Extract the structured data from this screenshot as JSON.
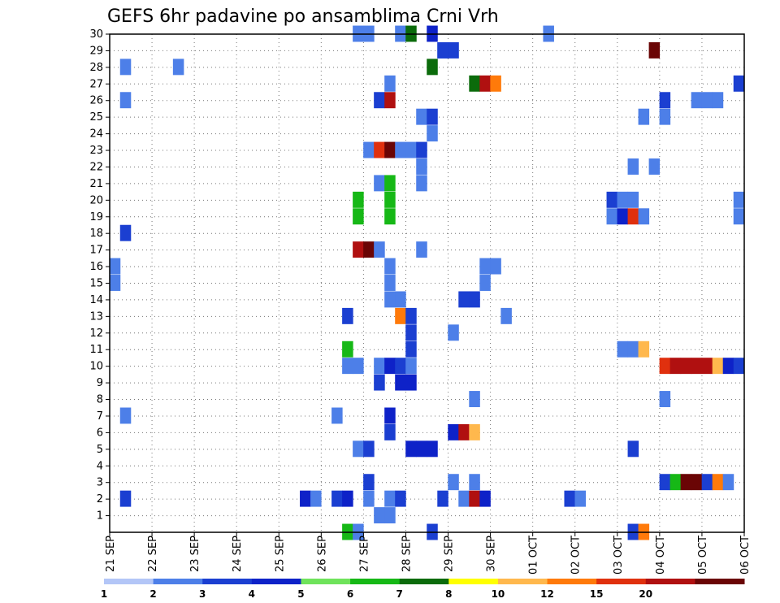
{
  "chart_data": {
    "type": "heatmap",
    "title": "GEFS 6hr padavine po ansamblima Crni Vrh",
    "xlabel": "",
    "ylabel": "",
    "x_ticks": [
      "21 SEP",
      "22 SEP",
      "23 SEP",
      "24 SEP",
      "25 SEP",
      "26 SEP",
      "27 SEP",
      "28 SEP",
      "29 SEP",
      "30 SEP",
      "01 OCT",
      "02 OCT",
      "03 OCT",
      "04 OCT",
      "05 OCT",
      "06 OCT"
    ],
    "x_range": [
      0,
      15
    ],
    "y_ticks": [
      1,
      2,
      3,
      4,
      5,
      6,
      7,
      8,
      9,
      10,
      11,
      12,
      13,
      14,
      15,
      16,
      17,
      18,
      19,
      20,
      21,
      22,
      23,
      24,
      25,
      26,
      27,
      28,
      29,
      30
    ],
    "y_range": [
      0,
      30
    ],
    "grid": true,
    "legend": {
      "placement": "bottom",
      "labels": [
        "1",
        "2",
        "3",
        "4",
        "5",
        "6",
        "7",
        "8",
        "10",
        "12",
        "15",
        "20"
      ],
      "colors": [
        "#b3c6f7",
        "#4d7fe8",
        "#1b3fd1",
        "#0e22c8",
        "#6fe35b",
        "#16b816",
        "#0b6b0b",
        "#ffff00",
        "#ffb84d",
        "#ff7a0a",
        "#e0300e",
        "#b01010",
        "#6a0505"
      ]
    },
    "cells": [
      [
        5.75,
        30,
        1
      ],
      [
        6.0,
        30,
        1
      ],
      [
        6.75,
        30,
        1
      ],
      [
        7.0,
        30,
        6
      ],
      [
        7.5,
        30,
        3
      ],
      [
        10.25,
        30,
        1
      ],
      [
        7.75,
        29,
        1
      ],
      [
        8.0,
        29,
        2
      ],
      [
        7.75,
        29,
        2
      ],
      [
        12.75,
        29,
        13
      ],
      [
        0.25,
        28,
        1
      ],
      [
        1.5,
        28,
        1
      ],
      [
        7.5,
        28,
        6
      ],
      [
        6.5,
        27,
        1
      ],
      [
        8.5,
        27,
        6
      ],
      [
        8.75,
        27,
        11
      ],
      [
        9.0,
        27,
        9
      ],
      [
        14.75,
        27,
        2
      ],
      [
        0.25,
        26,
        1
      ],
      [
        6.25,
        26,
        2
      ],
      [
        6.5,
        26,
        11
      ],
      [
        13.0,
        26,
        2
      ],
      [
        13.75,
        26,
        1
      ],
      [
        14.0,
        26,
        1
      ],
      [
        14.25,
        26,
        1
      ],
      [
        7.25,
        25,
        1
      ],
      [
        7.5,
        25,
        2
      ],
      [
        12.5,
        25,
        1
      ],
      [
        13.0,
        25,
        1
      ],
      [
        7.5,
        24,
        1
      ],
      [
        6.0,
        23,
        1
      ],
      [
        6.25,
        23,
        10
      ],
      [
        6.5,
        23,
        13
      ],
      [
        6.75,
        23,
        1
      ],
      [
        7.0,
        23,
        1
      ],
      [
        7.25,
        23,
        2
      ],
      [
        12.25,
        22,
        1
      ],
      [
        12.75,
        22,
        1
      ],
      [
        7.25,
        22,
        1
      ],
      [
        6.25,
        21,
        1
      ],
      [
        6.5,
        21,
        5
      ],
      [
        7.25,
        21,
        1
      ],
      [
        5.75,
        20,
        5
      ],
      [
        6.5,
        20,
        5
      ],
      [
        11.75,
        20,
        2
      ],
      [
        12.0,
        20,
        1
      ],
      [
        12.25,
        20,
        1
      ],
      [
        14.75,
        20,
        1
      ],
      [
        5.75,
        19,
        5
      ],
      [
        6.5,
        19,
        5
      ],
      [
        11.75,
        19,
        1
      ],
      [
        12.0,
        19,
        3
      ],
      [
        12.25,
        19,
        10
      ],
      [
        12.5,
        19,
        1
      ],
      [
        14.75,
        19,
        1
      ],
      [
        0.25,
        18,
        2
      ],
      [
        5.75,
        17,
        11
      ],
      [
        6.0,
        17,
        13
      ],
      [
        6.25,
        17,
        1
      ],
      [
        7.25,
        17,
        1
      ],
      [
        0.0,
        16,
        1
      ],
      [
        6.5,
        16,
        1
      ],
      [
        8.75,
        16,
        1
      ],
      [
        9.0,
        16,
        1
      ],
      [
        0.0,
        15,
        1
      ],
      [
        6.5,
        15,
        1
      ],
      [
        8.75,
        15,
        1
      ],
      [
        6.5,
        14,
        1
      ],
      [
        6.75,
        14,
        1
      ],
      [
        8.25,
        14,
        2
      ],
      [
        8.5,
        14,
        2
      ],
      [
        5.5,
        13,
        2
      ],
      [
        6.75,
        13,
        9
      ],
      [
        7.0,
        13,
        2
      ],
      [
        9.25,
        13,
        1
      ],
      [
        7.0,
        12,
        2
      ],
      [
        8.0,
        12,
        1
      ],
      [
        5.5,
        11,
        5
      ],
      [
        7.0,
        11,
        2
      ],
      [
        12.0,
        11,
        1
      ],
      [
        12.25,
        11,
        1
      ],
      [
        12.5,
        11,
        8
      ],
      [
        5.5,
        10,
        1
      ],
      [
        5.75,
        10,
        1
      ],
      [
        6.25,
        10,
        1
      ],
      [
        6.5,
        10,
        3
      ],
      [
        6.75,
        10,
        2
      ],
      [
        7.0,
        10,
        1
      ],
      [
        13.0,
        10,
        10
      ],
      [
        13.25,
        10,
        11
      ],
      [
        13.5,
        10,
        11
      ],
      [
        13.75,
        10,
        11
      ],
      [
        14.0,
        10,
        11
      ],
      [
        14.25,
        10,
        8
      ],
      [
        14.5,
        10,
        3
      ],
      [
        14.75,
        10,
        2
      ],
      [
        6.25,
        9,
        2
      ],
      [
        6.75,
        9,
        3
      ],
      [
        7.0,
        9,
        3
      ],
      [
        8.5,
        8,
        1
      ],
      [
        13.0,
        8,
        1
      ],
      [
        0.25,
        7,
        1
      ],
      [
        5.25,
        7,
        1
      ],
      [
        6.5,
        7,
        3
      ],
      [
        6.5,
        6,
        2
      ],
      [
        8.0,
        6,
        3
      ],
      [
        8.25,
        6,
        11
      ],
      [
        8.5,
        6,
        8
      ],
      [
        5.75,
        5,
        1
      ],
      [
        6.0,
        5,
        2
      ],
      [
        7.0,
        5,
        3
      ],
      [
        7.25,
        5,
        3
      ],
      [
        7.5,
        5,
        3
      ],
      [
        12.25,
        5,
        2
      ],
      [
        6.0,
        3,
        2
      ],
      [
        8.0,
        3,
        1
      ],
      [
        8.5,
        3,
        1
      ],
      [
        13.0,
        3,
        2
      ],
      [
        13.25,
        3,
        5
      ],
      [
        13.5,
        3,
        13
      ],
      [
        13.75,
        3,
        13
      ],
      [
        14.0,
        3,
        2
      ],
      [
        14.25,
        3,
        9
      ],
      [
        14.5,
        3,
        1
      ],
      [
        0.25,
        2,
        2
      ],
      [
        4.5,
        2,
        3
      ],
      [
        4.75,
        2,
        1
      ],
      [
        5.25,
        2,
        2
      ],
      [
        5.5,
        2,
        3
      ],
      [
        6.0,
        2,
        1
      ],
      [
        6.5,
        2,
        1
      ],
      [
        6.75,
        2,
        2
      ],
      [
        7.75,
        2,
        2
      ],
      [
        8.25,
        2,
        1
      ],
      [
        8.5,
        2,
        11
      ],
      [
        8.75,
        2,
        3
      ],
      [
        10.75,
        2,
        2
      ],
      [
        11.0,
        2,
        1
      ],
      [
        6.25,
        1,
        1
      ],
      [
        6.5,
        1,
        1
      ],
      [
        5.5,
        0,
        5
      ],
      [
        5.75,
        0,
        1
      ],
      [
        7.5,
        0,
        2
      ],
      [
        12.25,
        0,
        2
      ],
      [
        12.5,
        0,
        9
      ]
    ]
  }
}
